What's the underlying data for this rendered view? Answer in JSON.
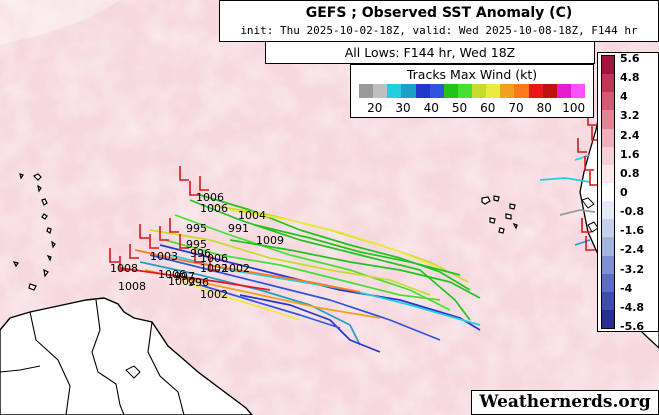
{
  "header": {
    "title": "GEFS ; Observed SST Anomaly (C)",
    "subtitle": "init: Thu 2025-10-02-18Z, valid: Wed 2025-10-08-18Z, F144 hr",
    "lows_label": "All Lows: F144 hr, Wed 18Z"
  },
  "wind_legend": {
    "title": "Tracks Max Wind (kt)",
    "ticks": [
      "20",
      "30",
      "40",
      "50",
      "60",
      "70",
      "80",
      "100"
    ],
    "colors": [
      "#9a9a9a",
      "#bfbfbf",
      "#22cfe0",
      "#1ca0c8",
      "#2238cc",
      "#2e54e0",
      "#22c41c",
      "#46e030",
      "#c8dc30",
      "#eaea40",
      "#f2a020",
      "#ff7a18",
      "#e81818",
      "#c01010",
      "#e41cd0",
      "#ff50ff"
    ]
  },
  "sst_legend": {
    "labels": [
      "5.6",
      "4.8",
      "4",
      "3.2",
      "2.4",
      "1.6",
      "0.8",
      "0",
      "-0.8",
      "-1.6",
      "-2.4",
      "-3.2",
      "-4",
      "-4.8",
      "-5.6"
    ],
    "colors": [
      "#a2163c",
      "#bf3656",
      "#d45a76",
      "#e28497",
      "#eeaebb",
      "#f5cfd6",
      "#fbe9ec",
      "#ffffff",
      "#e6eaf6",
      "#c8d0ec",
      "#a4b2e0",
      "#7e90d2",
      "#5a6ec2",
      "#3c4eac",
      "#262e90"
    ]
  },
  "map": {
    "ocean_color": "#f6d8de",
    "pressure_labels": [
      "1006",
      "1006",
      "1004",
      "995",
      "991",
      "1009",
      "995",
      "996",
      "1006",
      "1003",
      "1002",
      "1008",
      "1006",
      "1002",
      "997",
      "1002",
      "1008",
      "996",
      "1002"
    ]
  },
  "credit": "Weathernerds.org"
}
